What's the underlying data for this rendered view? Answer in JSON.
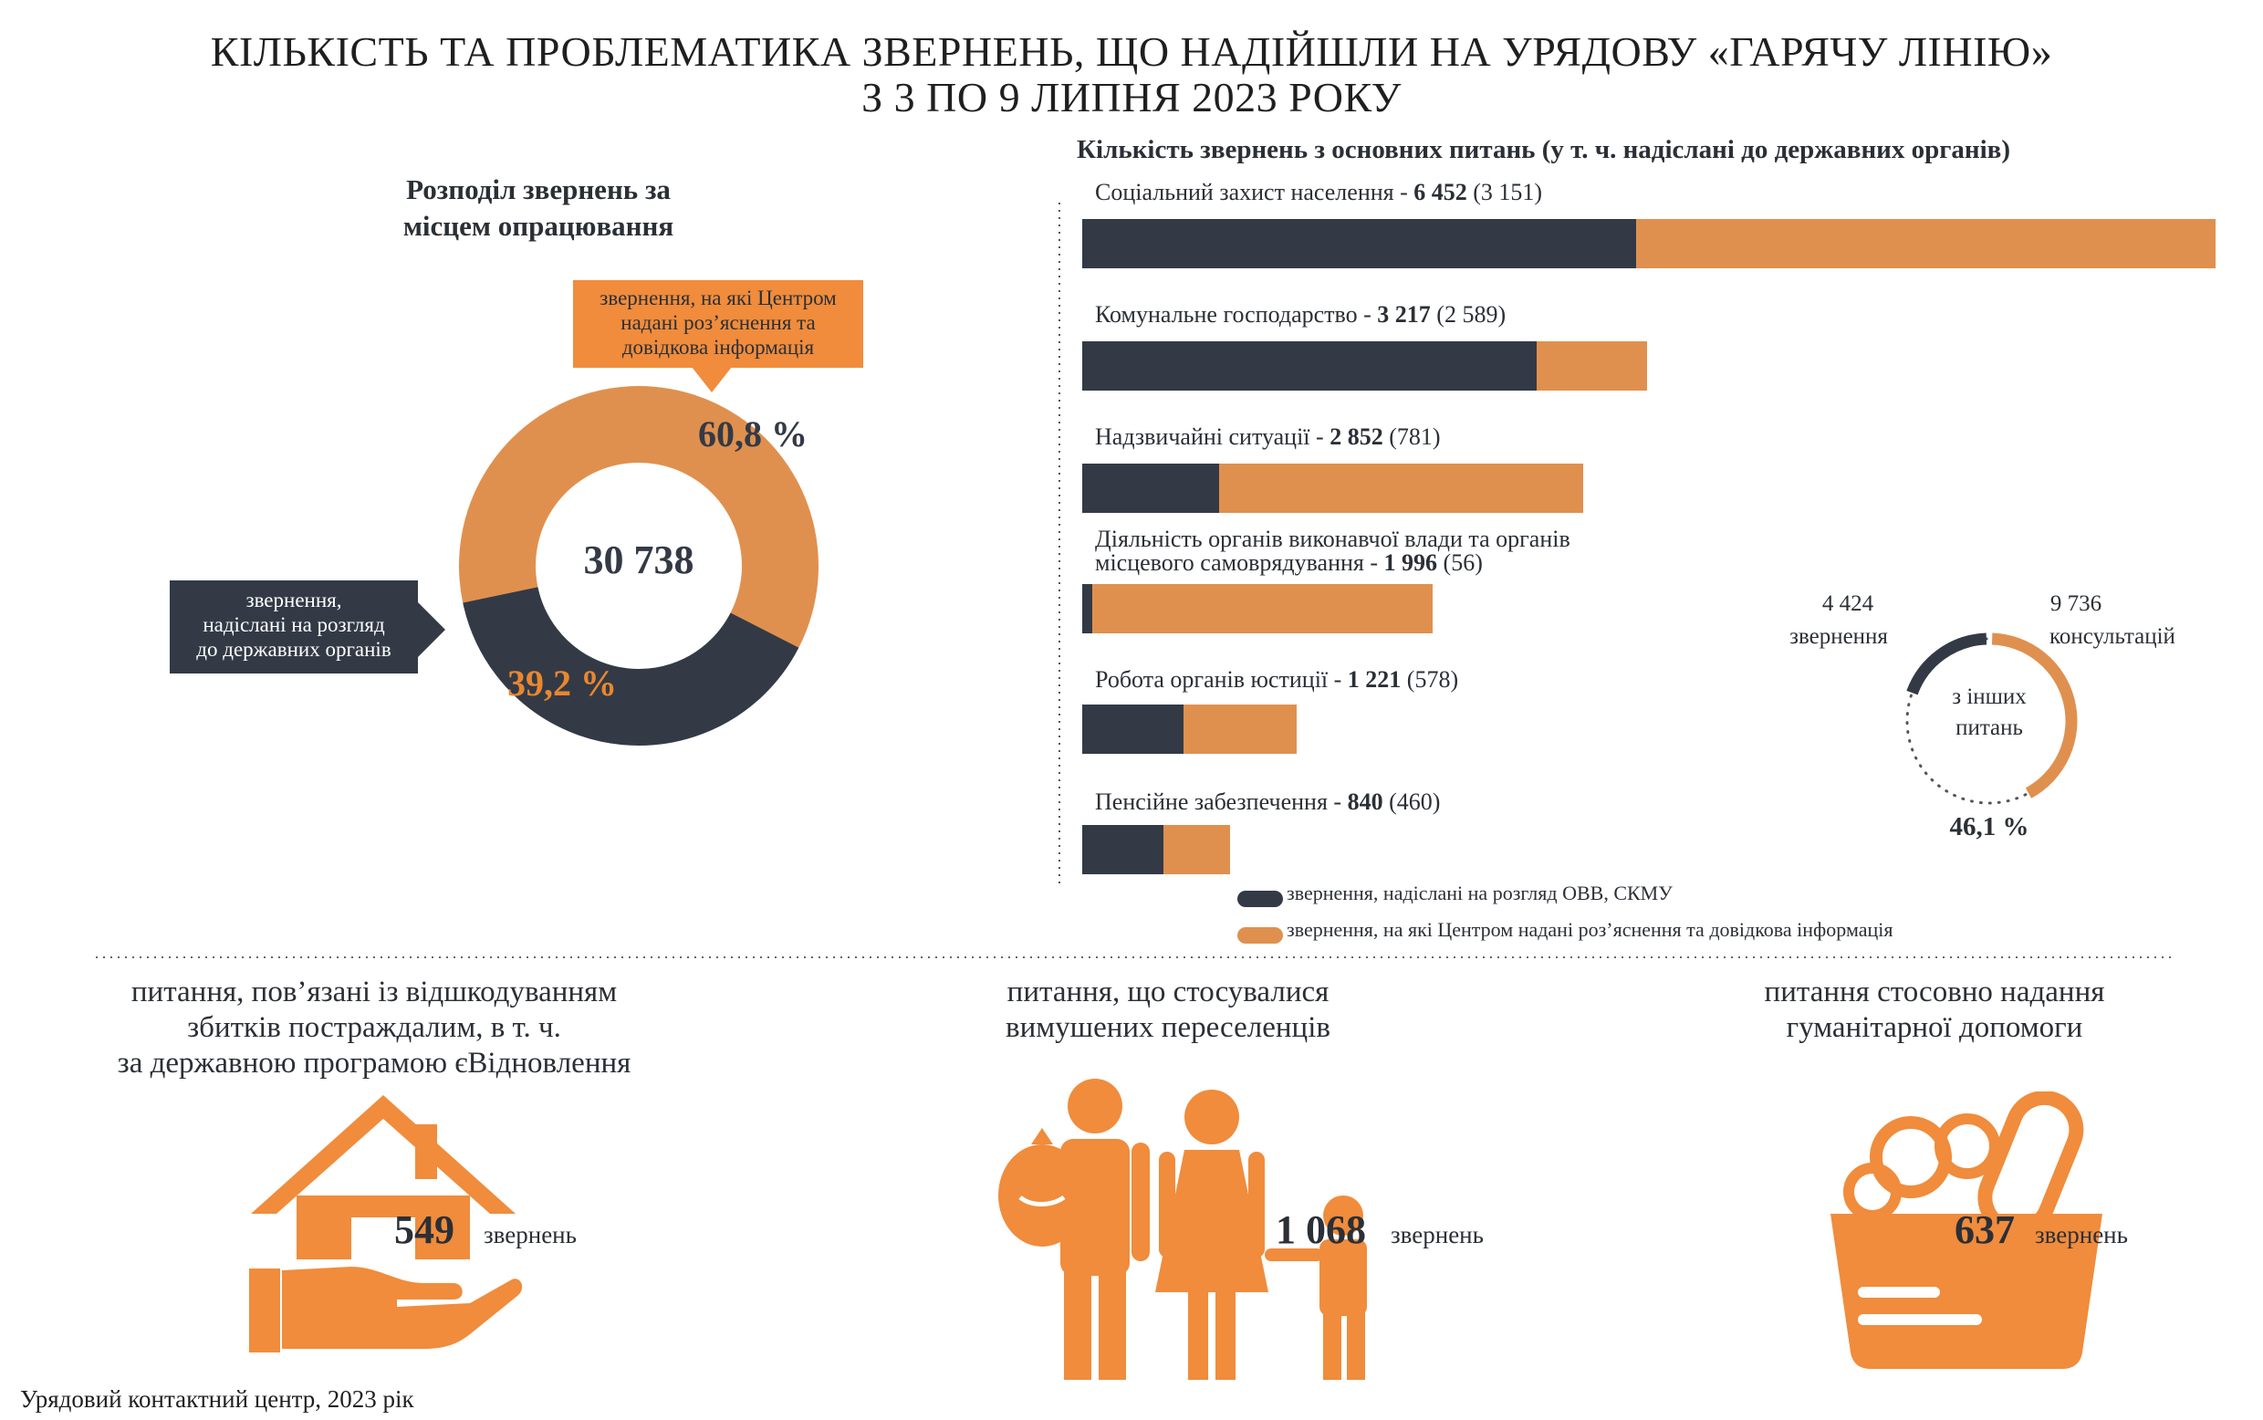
{
  "title": {
    "line1": "КІЛЬКІСТЬ ТА ПРОБЛЕМАТИКА ЗВЕРНЕНЬ, ЩО НАДІЙШЛИ НА УРЯДОВУ «ГАРЯЧУ ЛІНІЮ»",
    "line2": "З 3 ПО 9 ЛИПНЯ 2023 РОКУ"
  },
  "colors": {
    "dark": "#333a46",
    "orange": "#e0904e",
    "accent_orange": "#f08c3c"
  },
  "chart_data": [
    {
      "type": "pie",
      "variant": "donut",
      "title_line1": "Розподіл звернень за",
      "title_line2": "місцем опрацювання",
      "total": "30 738",
      "slices": [
        {
          "label_line1": "звернення, на які Центром",
          "label_line2": "надані роз’яснення та",
          "label_line3": "довідкова інформація",
          "value": 60.8,
          "display": "60,8 %",
          "color": "#e0904e"
        },
        {
          "label_line1": "звернення,",
          "label_line2": "надіслані на розгляд",
          "label_line3": "до державних органів",
          "value": 39.2,
          "display": "39,2 %",
          "color": "#333a46"
        }
      ]
    },
    {
      "type": "bar",
      "orientation": "horizontal",
      "stacked": true,
      "title": "Кількість звернень з основних питань (у т. ч. надіслані до державних органів)",
      "categories": [
        {
          "label": "Соціальний захист населення - ",
          "total": 6452,
          "total_text": "6 452",
          "sent": 3151,
          "sent_text": "(3 151)"
        },
        {
          "label": "Комунальне господарство - ",
          "total": 3217,
          "total_text": "3 217",
          "sent": 2589,
          "sent_text": "(2 589)"
        },
        {
          "label": "Надзвичайні ситуації - ",
          "total": 2852,
          "total_text": "2 852",
          "sent": 781,
          "sent_text": "(781)"
        },
        {
          "label_line1": "Діяльність органів виконавчої влади та органів",
          "label": "місцевого самоврядування - ",
          "total": 1996,
          "total_text": "1 996",
          "sent": 56,
          "sent_text": "(56)"
        },
        {
          "label": "Робота органів юстиції - ",
          "total": 1221,
          "total_text": "1 221",
          "sent": 578,
          "sent_text": "(578)"
        },
        {
          "label": "Пенсійне забезпечення - ",
          "total": 840,
          "total_text": "840",
          "sent": 460,
          "sent_text": "(460)"
        }
      ],
      "series": [
        {
          "name": "звернення, надіслані на розгляд ОВВ, СКМУ",
          "color": "#333a46"
        },
        {
          "name": "звернення, на які Центром надані роз’яснення та довідкова інформація",
          "color": "#e0904e"
        }
      ]
    },
    {
      "type": "pie",
      "variant": "ring",
      "center_line1": "з інших",
      "center_line2": "питань",
      "left_value": "4 424",
      "left_label": "звернення",
      "right_value": "9 736",
      "right_label": "консультацій",
      "percent": 46.1,
      "percent_text": "46,1 %",
      "sent": 4424,
      "consultations": 9736
    }
  ],
  "sections": [
    {
      "caption_line1": "питання, пов’язані із відшкодуванням",
      "caption_line2": "збитків постраждалим, в т. ч.",
      "caption_line3": "за державною програмою єВідновлення",
      "count": "549",
      "unit": "звернень",
      "icon": "house-in-hand-icon"
    },
    {
      "caption_line1": "питання, що стосувалися",
      "caption_line2": "вимушених переселенців",
      "count": "1 068",
      "unit": "звернень",
      "icon": "displaced-family-icon"
    },
    {
      "caption_line1": "питання стосовно надання",
      "caption_line2": "гуманітарної допомоги",
      "count": "637",
      "unit": "звернень",
      "icon": "food-basket-icon"
    }
  ],
  "footer": "Урядовий контактний центр, 2023 рік"
}
